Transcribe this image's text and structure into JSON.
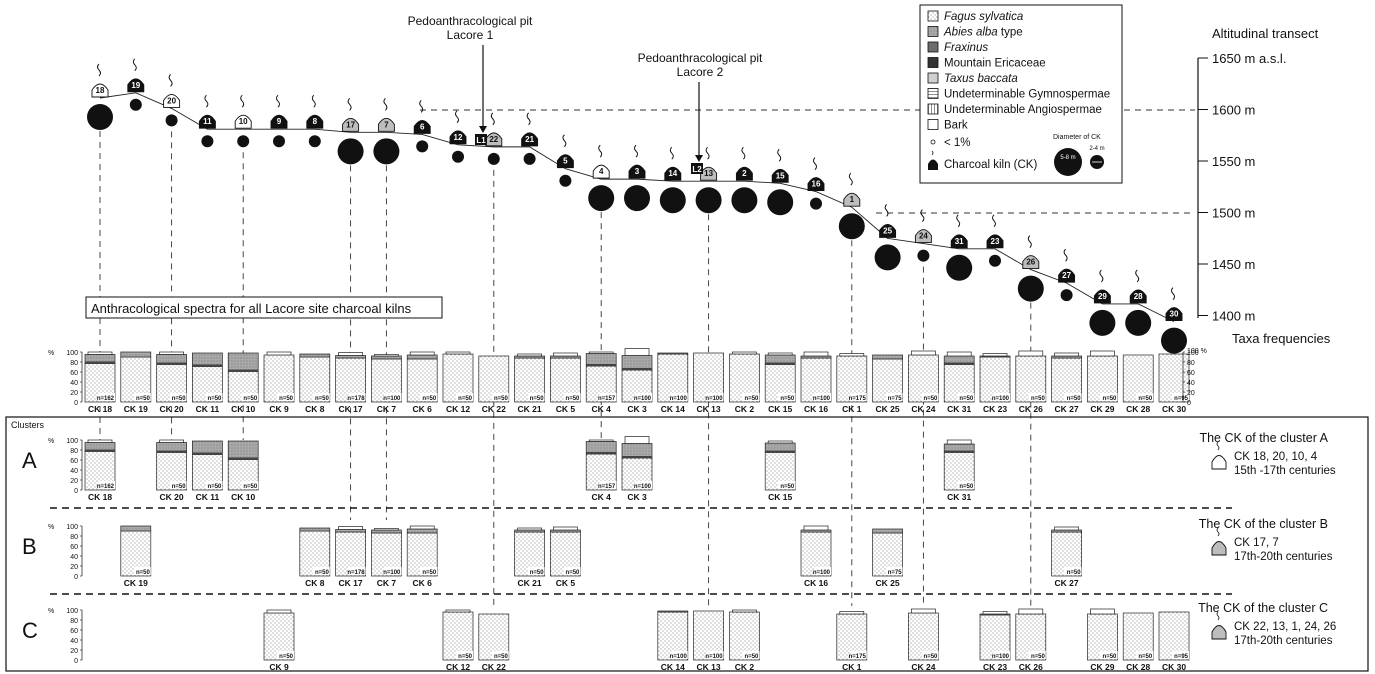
{
  "pits": [
    {
      "title": "Pedoanthracological pit",
      "name": "Lacore 1",
      "marker": "L1"
    },
    {
      "title": "Pedoanthracological pit",
      "name": "Lacore 2",
      "marker": "L2"
    }
  ],
  "transect": {
    "title": "Altitudinal transect",
    "ticks": [
      "1650 m a.s.l.",
      "1600 m",
      "1550 m",
      "1500 m",
      "1450 m",
      "1400 m"
    ],
    "freq_label": "Taxa frequencies"
  },
  "legend": {
    "items": [
      {
        "label": "Fagus sylvatica",
        "italic": true,
        "pattern": "fagus"
      },
      {
        "label": "Abies alba",
        "suffix": " type",
        "italic": true,
        "pattern": "abies"
      },
      {
        "label": "Fraxinus",
        "italic": true,
        "pattern": "fraxinus"
      },
      {
        "label": "Mountain Ericaceae",
        "italic": false,
        "pattern": "erica"
      },
      {
        "label": "Taxus baccata",
        "italic": true,
        "pattern": "taxus"
      },
      {
        "label": "Undeterminable Gymnospermae",
        "italic": false,
        "pattern": "gymno"
      },
      {
        "label": "Undeterminable Angiospermae",
        "italic": false,
        "pattern": "angio"
      },
      {
        "label": "Bark",
        "italic": false,
        "pattern": "bark"
      }
    ],
    "lt1": "< 1%",
    "kiln_label": "Charcoal kiln (CK)",
    "diameter_title": "Diameter of CK",
    "large_label": "5-8 m",
    "small_label": "2-4 m"
  },
  "spectra_title": "Anthracological spectra for all Lacore site charcoal kilns",
  "axis": {
    "unit": "%",
    "ticks": [
      "100",
      "80",
      "60",
      "40",
      "20",
      "0"
    ],
    "right_top": "100 %"
  },
  "clusters_label": "Clusters",
  "clusters": [
    {
      "id": "A",
      "title": "The CK of the cluster A",
      "members": "CK 18, 20, 10, 4",
      "period": "15th -17th centuries",
      "kiln_color": "#ffffff",
      "kilns": [
        "18",
        "20",
        "11",
        "10",
        "4",
        "3",
        "15",
        "31"
      ]
    },
    {
      "id": "B",
      "title": "The CK of the cluster B",
      "members": "CK 17, 7",
      "period": "17th-20th centuries",
      "kiln_color": "#bdbdbd",
      "kilns": [
        "19",
        "8",
        "17",
        "7",
        "6",
        "21",
        "5",
        "16",
        "25",
        "27"
      ]
    },
    {
      "id": "C",
      "title": "The CK of the cluster C",
      "members": "CK 22, 13, 1, 24, 26",
      "period": "17th-20th centuries",
      "kiln_color": "#bdbdbd",
      "kilns": [
        "9",
        "12",
        "22",
        "14",
        "13",
        "2",
        "1",
        "24",
        "23",
        "26",
        "29",
        "28",
        "30"
      ]
    }
  ],
  "kilns": [
    {
      "id": "18",
      "label": "CK 18",
      "n": "n=162",
      "alt": 1625,
      "size": "large",
      "color": "white",
      "fagus": 78,
      "abies": 17,
      "bark": 5
    },
    {
      "id": "19",
      "label": "CK 19",
      "n": "n=50",
      "alt": 1630,
      "size": "small",
      "color": "black",
      "fagus": 90,
      "abies": 10,
      "bark": 0
    },
    {
      "id": "20",
      "label": "CK 20",
      "n": "n=50",
      "alt": 1615,
      "size": "small",
      "color": "white",
      "fagus": 76,
      "abies": 19,
      "bark": 5
    },
    {
      "id": "11",
      "label": "CK 11",
      "n": "n=50",
      "alt": 1595,
      "size": "small",
      "color": "black",
      "fagus": 72,
      "abies": 26,
      "bark": 0
    },
    {
      "id": "10",
      "label": "CK 10",
      "n": "n=50",
      "alt": 1595,
      "size": "small",
      "color": "white",
      "fagus": 62,
      "abies": 36,
      "bark": 0
    },
    {
      "id": "9",
      "label": "CK 9",
      "n": "n=50",
      "alt": 1595,
      "size": "small",
      "color": "black",
      "fagus": 94,
      "abies": 0,
      "bark": 6
    },
    {
      "id": "8",
      "label": "CK 8",
      "n": "n=50",
      "alt": 1595,
      "size": "small",
      "color": "black",
      "fagus": 90,
      "abies": 6,
      "bark": 0
    },
    {
      "id": "17",
      "label": "CK 17",
      "n": "n=178",
      "alt": 1592,
      "size": "large",
      "color": "gray",
      "fagus": 88,
      "abies": 5,
      "bark": 6
    },
    {
      "id": "7",
      "label": "CK 7",
      "n": "n=100",
      "alt": 1592,
      "size": "large",
      "color": "gray",
      "fagus": 86,
      "abies": 6,
      "bark": 3
    },
    {
      "id": "6",
      "label": "CK 6",
      "n": "n=50",
      "alt": 1590,
      "size": "small",
      "color": "black",
      "fagus": 86,
      "abies": 8,
      "bark": 6
    },
    {
      "id": "12",
      "label": "CK 12",
      "n": "n=50",
      "alt": 1580,
      "size": "small",
      "color": "black",
      "fagus": 96,
      "abies": 0,
      "bark": 4
    },
    {
      "id": "22",
      "label": "CK 22",
      "n": "n=50",
      "alt": 1578,
      "size": "small",
      "color": "gray",
      "fagus": 92,
      "abies": 0,
      "bark": 0
    },
    {
      "id": "21",
      "label": "CK 21",
      "n": "n=50",
      "alt": 1578,
      "size": "small",
      "color": "black",
      "fagus": 88,
      "abies": 4,
      "bark": 4
    },
    {
      "id": "5",
      "label": "CK 5",
      "n": "n=50",
      "alt": 1557,
      "size": "small",
      "color": "black",
      "fagus": 88,
      "abies": 4,
      "bark": 6
    },
    {
      "id": "4",
      "label": "CK 4",
      "n": "n=157",
      "alt": 1547,
      "size": "large",
      "color": "white",
      "fagus": 73,
      "abies": 24,
      "bark": 3
    },
    {
      "id": "3",
      "label": "CK 3",
      "n": "n=100",
      "alt": 1547,
      "size": "large",
      "color": "black",
      "fagus": 65,
      "abies": 28,
      "bark": 14
    },
    {
      "id": "14",
      "label": "CK 14",
      "n": "n=100",
      "alt": 1545,
      "size": "large",
      "color": "black",
      "fagus": 96,
      "abies": 2,
      "bark": 0
    },
    {
      "id": "13",
      "label": "CK 13",
      "n": "n=100",
      "alt": 1545,
      "size": "large",
      "color": "gray",
      "fagus": 98,
      "abies": 0,
      "bark": 0
    },
    {
      "id": "2",
      "label": "CK 2",
      "n": "n=50",
      "alt": 1545,
      "size": "large",
      "color": "black",
      "fagus": 96,
      "abies": 0,
      "bark": 4
    },
    {
      "id": "15",
      "label": "CK 15",
      "n": "n=50",
      "alt": 1543,
      "size": "large",
      "color": "black",
      "fagus": 76,
      "abies": 18,
      "bark": 4
    },
    {
      "id": "16",
      "label": "CK 16",
      "n": "n=100",
      "alt": 1535,
      "size": "small",
      "color": "black",
      "fagus": 88,
      "abies": 4,
      "bark": 8
    },
    {
      "id": "1",
      "label": "CK 1",
      "n": "n=175",
      "alt": 1520,
      "size": "large",
      "color": "gray",
      "fagus": 92,
      "abies": 0,
      "bark": 5
    },
    {
      "id": "25",
      "label": "CK 25",
      "n": "n=75",
      "alt": 1490,
      "size": "large",
      "color": "black",
      "fagus": 86,
      "abies": 8,
      "bark": 0
    },
    {
      "id": "24",
      "label": "CK 24",
      "n": "n=50",
      "alt": 1485,
      "size": "small",
      "color": "gray",
      "fagus": 94,
      "abies": 0,
      "bark": 8
    },
    {
      "id": "31",
      "label": "CK 31",
      "n": "n=50",
      "alt": 1480,
      "size": "large",
      "color": "black",
      "fagus": 76,
      "abies": 16,
      "bark": 8
    },
    {
      "id": "23",
      "label": "CK 23",
      "n": "n=100",
      "alt": 1480,
      "size": "small",
      "color": "black",
      "fagus": 90,
      "abies": 2,
      "bark": 5
    },
    {
      "id": "26",
      "label": "CK 26",
      "n": "n=50",
      "alt": 1460,
      "size": "large",
      "color": "gray",
      "fagus": 92,
      "abies": 0,
      "bark": 10
    },
    {
      "id": "27",
      "label": "CK 27",
      "n": "n=50",
      "alt": 1447,
      "size": "small",
      "color": "black",
      "fagus": 88,
      "abies": 4,
      "bark": 6
    },
    {
      "id": "29",
      "label": "CK 29",
      "n": "n=50",
      "alt": 1427,
      "size": "large",
      "color": "black",
      "fagus": 92,
      "abies": 0,
      "bark": 10
    },
    {
      "id": "28",
      "label": "CK 28",
      "n": "n=50",
      "alt": 1427,
      "size": "large",
      "color": "black",
      "fagus": 94,
      "abies": 0,
      "bark": 0
    },
    {
      "id": "30",
      "label": "CK 30",
      "n": "n=95",
      "alt": 1410,
      "size": "large",
      "color": "black",
      "fagus": 96,
      "abies": 0,
      "bark": 0
    }
  ]
}
